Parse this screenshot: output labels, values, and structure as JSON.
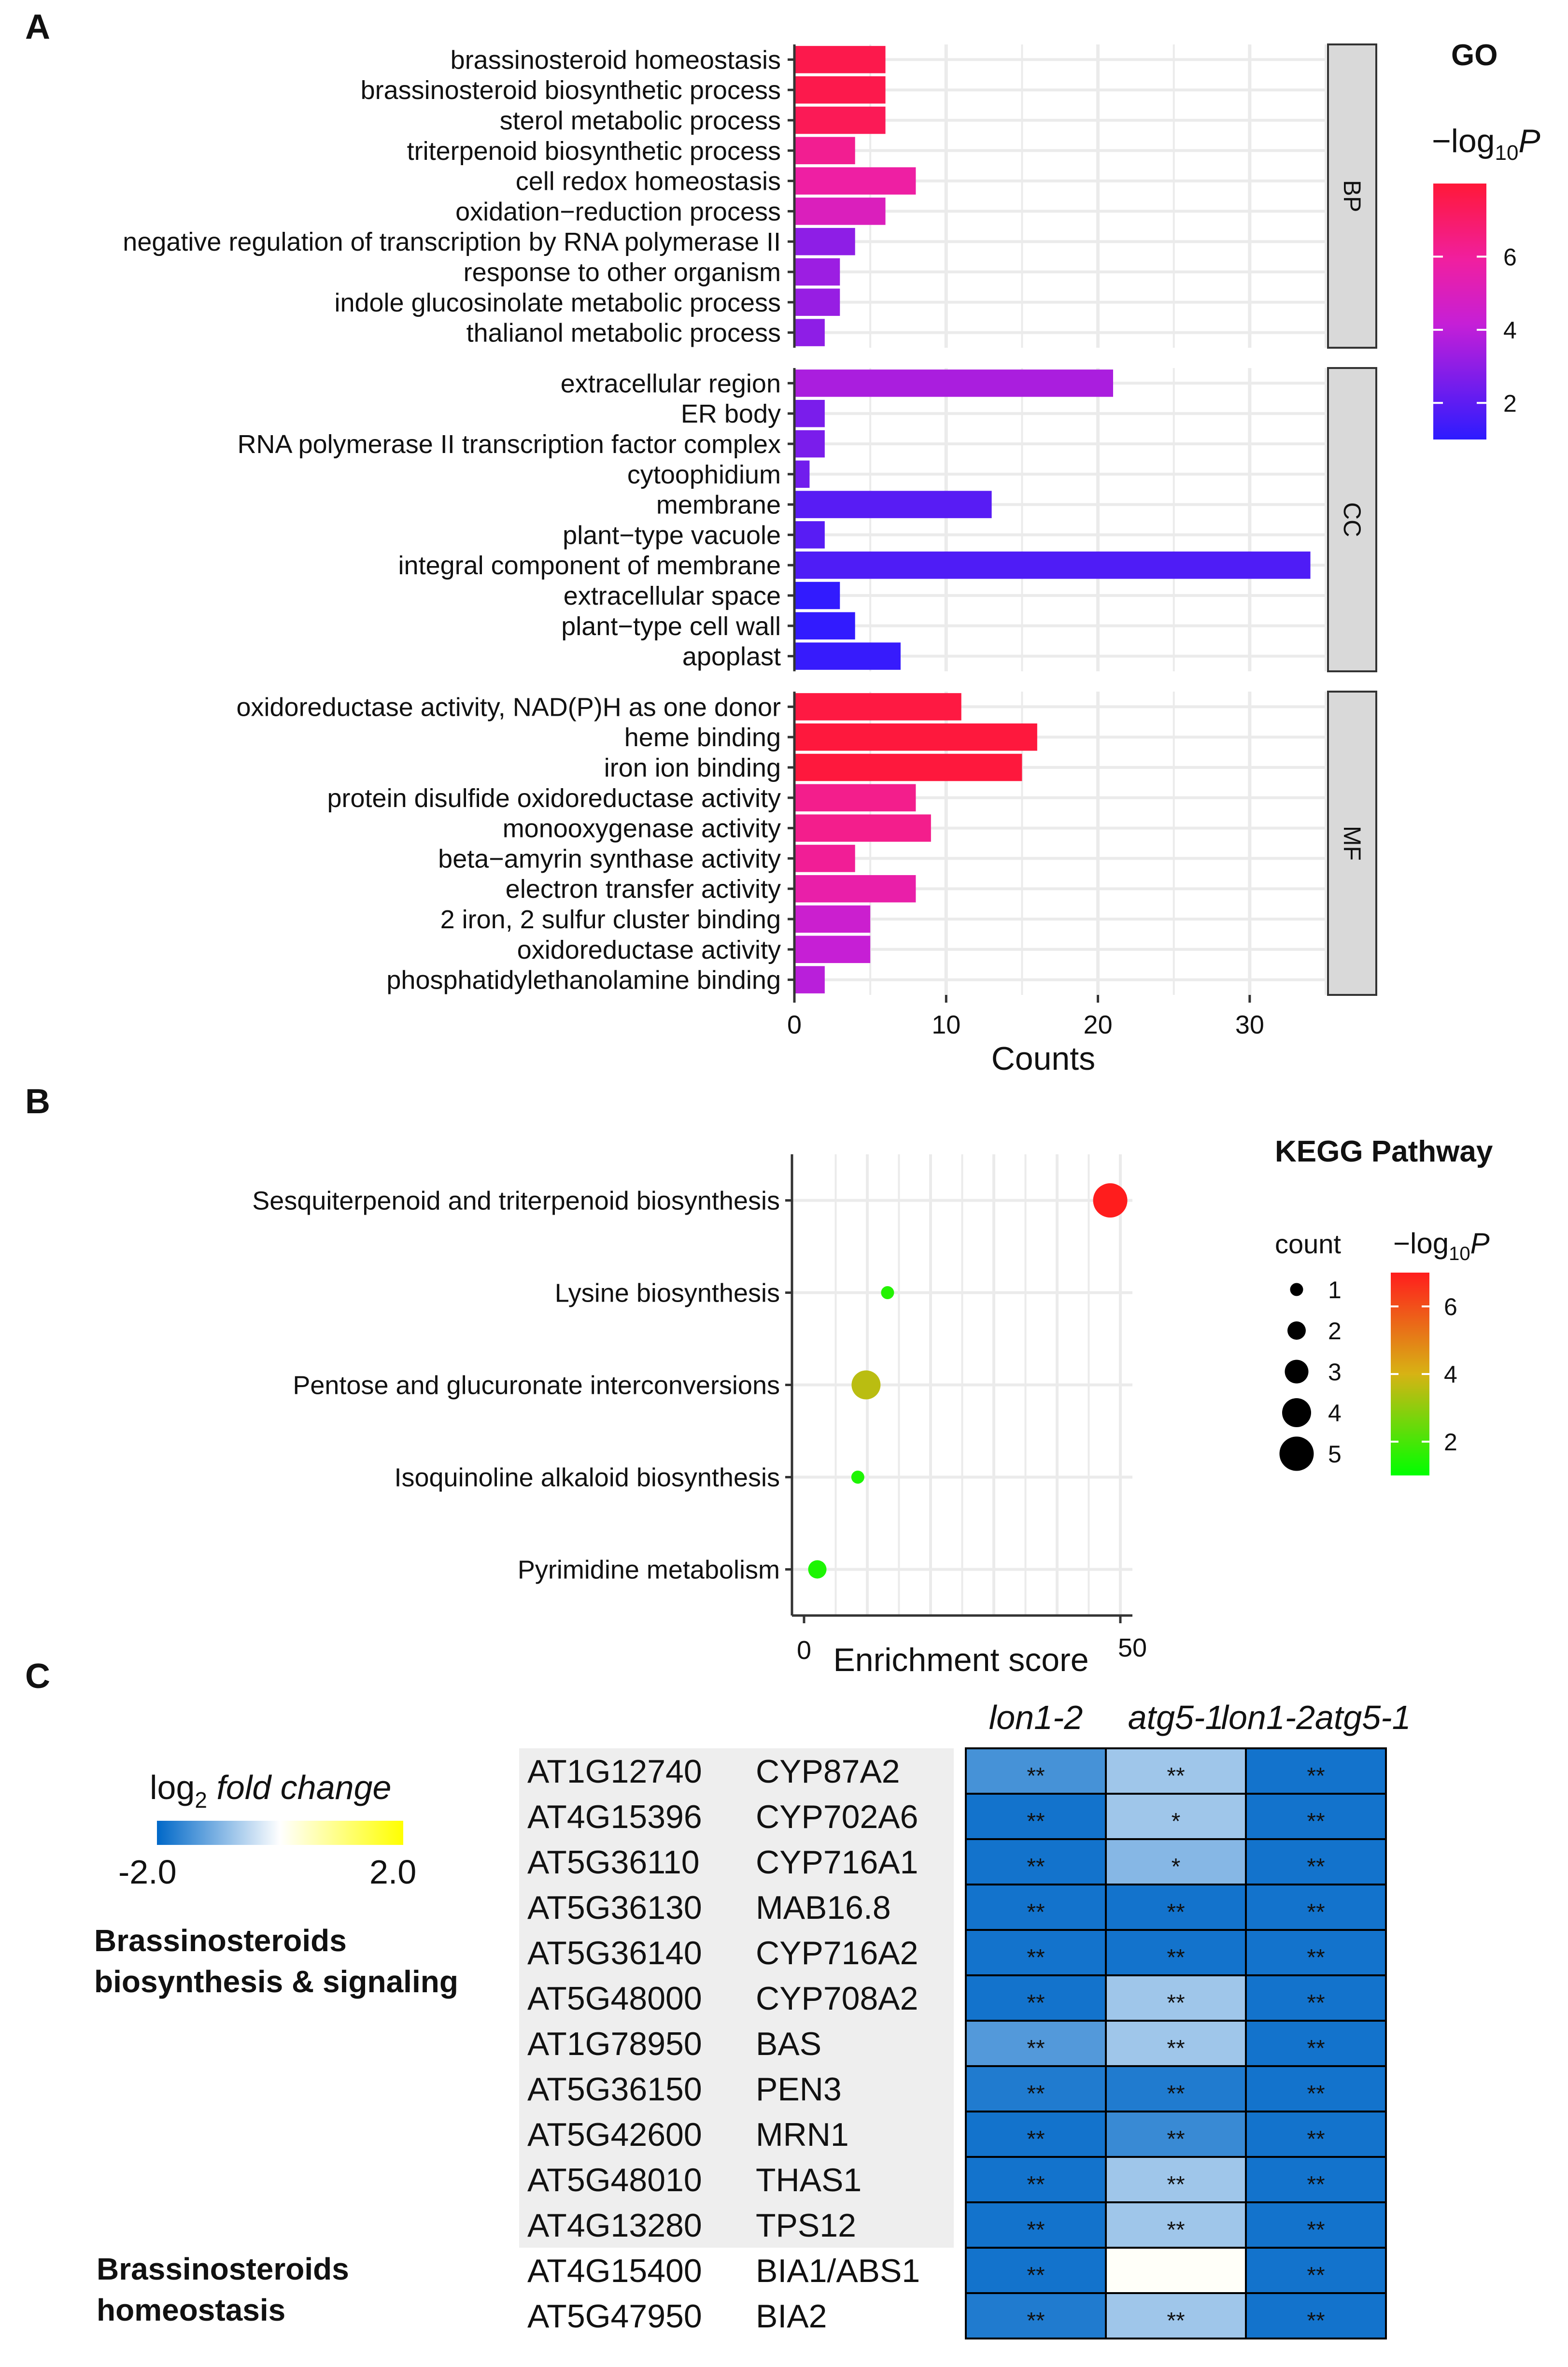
{
  "panel_labels": [
    "A",
    "B",
    "C"
  ],
  "chart_data": [
    {
      "type": "bar",
      "orientation": "horizontal",
      "panel": "A",
      "legend_title": "GO",
      "color_scale_title": "−log10P",
      "color_scale_ticks": [
        2,
        4,
        6
      ],
      "color_range": [
        1,
        8
      ],
      "xlabel": "Counts",
      "xlim": [
        0,
        35
      ],
      "xticks": [
        0,
        10,
        20,
        30
      ],
      "facets": [
        {
          "name": "BP",
          "categories": [
            "brassinosteroid homeostasis",
            "brassinosteroid biosynthetic process",
            "sterol metabolic process",
            "triterpenoid biosynthetic process",
            "cell redox homeostasis",
            "oxidation−reduction process",
            "negative regulation of transcription by RNA polymerase II",
            "response to other organism",
            "indole glucosinolate metabolic process",
            "thalianol metabolic process"
          ],
          "values": [
            6,
            6,
            6,
            4,
            8,
            6,
            4,
            3,
            3,
            2
          ],
          "neglogp": [
            7.6,
            7.6,
            7.4,
            6.2,
            5.8,
            5.0,
            3.0,
            3.3,
            3.2,
            3.0
          ]
        },
        {
          "name": "CC",
          "categories": [
            "extracellular region",
            "ER body",
            "RNA polymerase II transcription factor complex",
            "cytoophidium",
            "membrane",
            "plant−type vacuole",
            "integral component of membrane",
            "extracellular space",
            "plant−type cell wall",
            "apoplast"
          ],
          "values": [
            21,
            2,
            2,
            1,
            13,
            2,
            34,
            3,
            4,
            7
          ],
          "neglogp": [
            3.6,
            2.6,
            2.6,
            2.4,
            1.9,
            1.9,
            1.7,
            1.1,
            1.1,
            1.2
          ]
        },
        {
          "name": "MF",
          "categories": [
            "oxidoreductase activity, NAD(P)H as one donor",
            "heme binding",
            "iron ion binding",
            "protein disulfide oxidoreductase activity",
            "monooxygenase activity",
            "beta−amyrin synthase activity",
            "electron transfer activity",
            "2 iron, 2 sulfur cluster binding",
            "oxidoreductase activity",
            "phosphatidylethanolamine binding"
          ],
          "values": [
            11,
            16,
            15,
            8,
            9,
            4,
            8,
            5,
            5,
            2
          ],
          "neglogp": [
            7.8,
            7.9,
            7.9,
            6.3,
            6.3,
            6.1,
            5.6,
            4.4,
            4.2,
            3.9
          ]
        }
      ]
    },
    {
      "type": "scatter",
      "panel": "B",
      "legend_title": "KEGG Pathway",
      "size_legend_title": "count",
      "size_legend_values": [
        1,
        2,
        3,
        4,
        5
      ],
      "color_scale_title": "−log10P",
      "color_scale_ticks": [
        2,
        4,
        6
      ],
      "color_range": [
        1,
        7
      ],
      "xlabel": "Enrichment score",
      "xlim": [
        0,
        50
      ],
      "xticks": [
        0,
        50
      ],
      "categories": [
        "Sesquiterpenoid and triterpenoid biosynthesis",
        "Lysine biosynthesis",
        "Pentose and glucuronate interconversions",
        "Isoquinoline alkaloid biosynthesis",
        "Pyrimidine metabolism"
      ],
      "x": [
        48.4,
        13.2,
        9.8,
        8.5,
        2.1
      ],
      "count": [
        5,
        1,
        4,
        1,
        2
      ],
      "neglogp": [
        7.0,
        1.5,
        3.6,
        1.4,
        1.4
      ]
    },
    {
      "type": "heatmap",
      "panel": "C",
      "legend_title_prefix": "log",
      "legend_title_sub": "2",
      "legend_title_suffix": "fold change",
      "scale_min_label": "-2.0",
      "scale_max_label": "2.0",
      "columns": [
        "lon1-2",
        "atg5-1",
        "lon1-2atg5-1"
      ],
      "groups": [
        {
          "label_lines": [
            "Brassinosteroids",
            "biosynthesis & signaling"
          ]
        },
        {
          "label_lines": [
            "Brassinosteroids",
            "homeostasis"
          ]
        }
      ],
      "rows": [
        {
          "id": "AT1G12740",
          "gene": "CYP87A2",
          "values": [
            -1.45,
            -0.75,
            -1.85
          ],
          "sig": [
            "**",
            "**",
            "**"
          ]
        },
        {
          "id": "AT4G15396",
          "gene": "CYP702A6",
          "values": [
            -1.85,
            -0.75,
            -1.85
          ],
          "sig": [
            "**",
            "*",
            "**"
          ]
        },
        {
          "id": "AT5G36110",
          "gene": "CYP716A1",
          "values": [
            -1.85,
            -0.95,
            -1.85
          ],
          "sig": [
            "**",
            "*",
            "**"
          ]
        },
        {
          "id": "AT5G36130",
          "gene": "MAB16.8",
          "values": [
            -1.85,
            -1.85,
            -1.85
          ],
          "sig": [
            "**",
            "**",
            "**"
          ]
        },
        {
          "id": "AT5G36140",
          "gene": "CYP716A2",
          "values": [
            -1.85,
            -1.85,
            -1.85
          ],
          "sig": [
            "**",
            "**",
            "**"
          ]
        },
        {
          "id": "AT5G48000",
          "gene": "CYP708A2",
          "values": [
            -1.85,
            -0.75,
            -1.85
          ],
          "sig": [
            "**",
            "**",
            "**"
          ]
        },
        {
          "id": "AT1G78950",
          "gene": "BAS",
          "values": [
            -1.35,
            -0.75,
            -1.85
          ],
          "sig": [
            "**",
            "**",
            "**"
          ]
        },
        {
          "id": "AT5G36150",
          "gene": "PEN3",
          "values": [
            -1.75,
            -1.75,
            -1.85
          ],
          "sig": [
            "**",
            "**",
            "**"
          ]
        },
        {
          "id": "AT5G42600",
          "gene": "MRN1",
          "values": [
            -1.85,
            -1.55,
            -1.85
          ],
          "sig": [
            "**",
            "**",
            "**"
          ]
        },
        {
          "id": "AT5G48010",
          "gene": "THAS1",
          "values": [
            -1.85,
            -0.75,
            -1.85
          ],
          "sig": [
            "**",
            "**",
            "**"
          ]
        },
        {
          "id": "AT4G13280",
          "gene": "TPS12",
          "values": [
            -1.85,
            -0.75,
            -1.85
          ],
          "sig": [
            "**",
            "**",
            "**"
          ]
        },
        {
          "id": "AT4G15400",
          "gene": "BIA1/ABS1",
          "values": [
            -1.85,
            0.05,
            -1.85
          ],
          "sig": [
            "**",
            "",
            "**"
          ]
        },
        {
          "id": "AT5G47950",
          "gene": "BIA2",
          "values": [
            -1.75,
            -0.75,
            -1.85
          ],
          "sig": [
            "**",
            "**",
            "**"
          ]
        }
      ]
    }
  ]
}
